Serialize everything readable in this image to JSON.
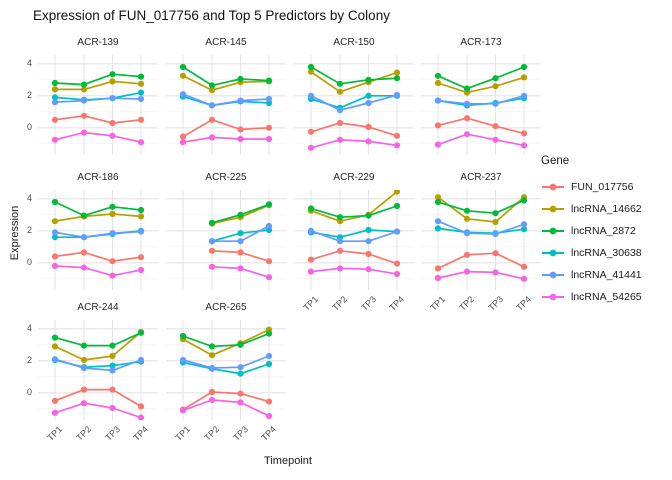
{
  "legend": {
    "title": "Gene",
    "genes": [
      {
        "name": "FUN_017756",
        "color": "#F8766D"
      },
      {
        "name": "lncRNA_14662",
        "color": "#B79F00"
      },
      {
        "name": "lncRNA_2872",
        "color": "#00BA38"
      },
      {
        "name": "lncRNA_30638",
        "color": "#00BFC4"
      },
      {
        "name": "lncRNA_41441",
        "color": "#619CFF"
      },
      {
        "name": "lncRNA_54265",
        "color": "#F564E2"
      }
    ]
  },
  "chart_data": {
    "type": "line",
    "title": "Expression of FUN_017756 and Top 5 Predictors by Colony",
    "xlabel": "Timepoint",
    "ylabel": "Expression",
    "x": [
      "TP1",
      "TP2",
      "TP3",
      "TP4"
    ],
    "y_ticks": [
      4,
      2,
      0
    ],
    "ylim": [
      -1.7,
      4.55
    ],
    "grid": true,
    "legend_position": "right",
    "facets": [
      {
        "label": "ACR-139",
        "series": [
          [
            0.5,
            0.75,
            0.3,
            0.5
          ],
          [
            2.4,
            2.4,
            2.9,
            2.75
          ],
          [
            2.8,
            2.7,
            3.35,
            3.2
          ],
          [
            1.9,
            1.75,
            1.85,
            2.2
          ],
          [
            1.6,
            1.7,
            1.85,
            1.8
          ],
          [
            -0.75,
            -0.3,
            -0.5,
            -0.9
          ]
        ]
      },
      {
        "label": "ACR-145",
        "series": [
          [
            -0.55,
            0.5,
            -0.1,
            0.0
          ],
          [
            3.25,
            2.35,
            2.85,
            2.9
          ],
          [
            3.8,
            2.65,
            3.05,
            2.95
          ],
          [
            1.95,
            1.4,
            1.65,
            1.55
          ],
          [
            2.1,
            1.4,
            1.7,
            1.8
          ],
          [
            -0.9,
            -0.6,
            -0.7,
            -0.7
          ]
        ]
      },
      {
        "label": "ACR-150",
        "series": [
          [
            -0.25,
            0.3,
            0.05,
            -0.5
          ],
          [
            3.5,
            2.25,
            2.85,
            3.45
          ],
          [
            3.8,
            2.75,
            3.0,
            3.1
          ],
          [
            1.8,
            1.25,
            2.0,
            2.0
          ],
          [
            2.0,
            1.1,
            1.55,
            2.05
          ],
          [
            -1.25,
            -0.75,
            -0.85,
            -1.1
          ]
        ]
      },
      {
        "label": "ACR-173",
        "series": [
          [
            0.15,
            0.6,
            0.1,
            -0.35
          ],
          [
            2.8,
            2.2,
            2.6,
            3.15
          ],
          [
            3.25,
            2.45,
            3.1,
            3.8
          ],
          [
            1.7,
            1.4,
            1.55,
            1.85
          ],
          [
            1.7,
            1.5,
            1.5,
            2.0
          ],
          [
            -1.05,
            -0.4,
            -0.75,
            -1.1
          ]
        ]
      },
      {
        "label": "ACR-186",
        "series": [
          [
            0.4,
            0.65,
            0.1,
            0.35
          ],
          [
            2.6,
            2.9,
            3.05,
            2.9
          ],
          [
            3.8,
            2.95,
            3.5,
            3.3
          ],
          [
            1.6,
            1.6,
            1.8,
            2.0
          ],
          [
            1.9,
            1.6,
            1.85,
            1.95
          ],
          [
            -0.2,
            -0.3,
            -0.8,
            -0.45
          ]
        ]
      },
      {
        "label": "ACR-225",
        "series": [
          [
            null,
            0.75,
            0.65,
            0.1
          ],
          [
            null,
            2.45,
            2.85,
            3.6
          ],
          [
            null,
            2.5,
            3.0,
            3.65
          ],
          [
            null,
            1.35,
            1.85,
            2.05
          ],
          [
            null,
            1.35,
            1.35,
            2.3
          ],
          [
            null,
            -0.25,
            -0.35,
            -0.9
          ]
        ]
      },
      {
        "label": "ACR-229",
        "series": [
          [
            0.2,
            0.75,
            0.55,
            -0.05
          ],
          [
            3.25,
            2.6,
            3.0,
            4.45
          ],
          [
            3.4,
            2.85,
            2.95,
            3.55
          ],
          [
            1.9,
            1.6,
            2.05,
            1.95
          ],
          [
            2.0,
            1.35,
            1.35,
            1.95
          ],
          [
            -0.55,
            -0.35,
            -0.4,
            -0.7
          ]
        ]
      },
      {
        "label": "ACR-237",
        "series": [
          [
            -0.35,
            0.5,
            0.6,
            -0.25
          ],
          [
            4.1,
            2.75,
            2.55,
            4.1
          ],
          [
            3.8,
            3.25,
            3.1,
            3.9
          ],
          [
            2.15,
            1.9,
            1.85,
            2.1
          ],
          [
            2.6,
            1.85,
            1.8,
            2.4
          ],
          [
            -0.95,
            -0.55,
            -0.6,
            -1.0
          ]
        ]
      },
      {
        "label": "ACR-244",
        "series": [
          [
            -0.5,
            0.2,
            0.2,
            -0.85
          ],
          [
            2.9,
            2.05,
            2.3,
            3.8
          ],
          [
            3.45,
            2.95,
            2.95,
            3.75
          ],
          [
            2.05,
            1.6,
            1.7,
            1.95
          ],
          [
            2.1,
            1.55,
            1.4,
            2.05
          ],
          [
            -1.25,
            -0.65,
            -0.95,
            -1.55
          ]
        ]
      },
      {
        "label": "ACR-265",
        "series": [
          [
            -1.05,
            0.05,
            -0.05,
            -0.55
          ],
          [
            3.35,
            2.35,
            3.1,
            3.95
          ],
          [
            3.55,
            2.9,
            3.0,
            3.7
          ],
          [
            1.9,
            1.5,
            1.2,
            1.8
          ],
          [
            2.05,
            1.55,
            1.6,
            2.3
          ],
          [
            -1.1,
            -0.45,
            -0.6,
            -1.45
          ]
        ]
      }
    ]
  }
}
